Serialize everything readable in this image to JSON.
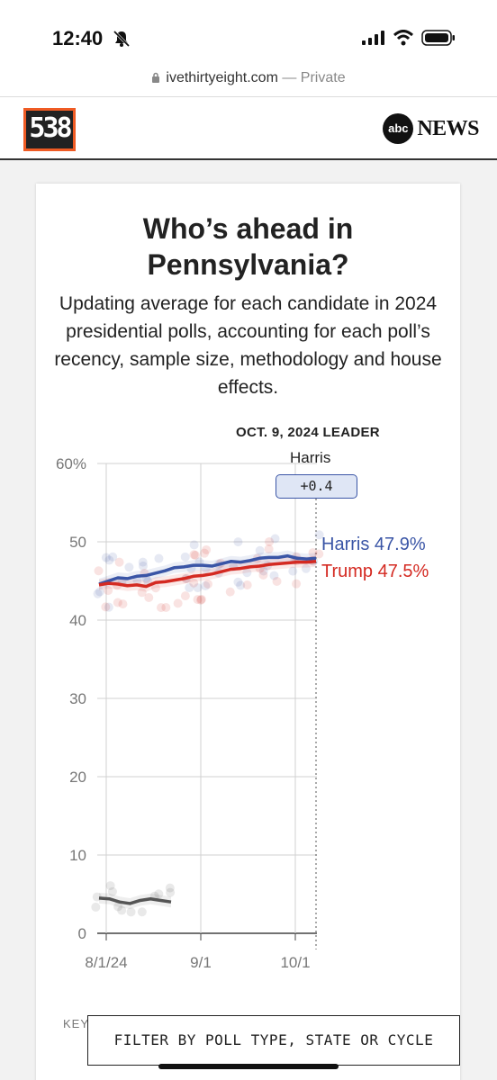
{
  "status_bar": {
    "time": "12:40"
  },
  "browser": {
    "url": "ivethirtyeight.com",
    "separator": " — ",
    "mode": "Private"
  },
  "site": {
    "logo_text": "538",
    "partner_badge": "abc",
    "partner_text": "NEWS"
  },
  "card": {
    "title_line1": "Who’s ahead in",
    "title_line2": "Pennsylvania?",
    "subtitle": "Updating average for each candidate in 2024 presidential polls, accounting for each poll’s recency, sample size, methodology and house effects."
  },
  "leader_panel": {
    "label": "OCT. 9, 2024 LEADER",
    "name": "Harris",
    "margin": "+0.4"
  },
  "end_labels": {
    "harris": "Harris 47.9%",
    "trump": "Trump 47.5%"
  },
  "chart_data": {
    "type": "line",
    "x_ticks": [
      "8/1/24",
      "9/1",
      "10/1"
    ],
    "y_ticks": [
      "0",
      "10",
      "20",
      "30",
      "40",
      "50",
      "60%"
    ],
    "ylim": [
      0,
      60
    ],
    "grid": true,
    "series": [
      {
        "name": "Harris",
        "color": "#3a55a6",
        "values": [
          44.6,
          45.0,
          45.4,
          45.3,
          45.6,
          45.7,
          46.0,
          46.3,
          46.7,
          46.8,
          47.0,
          47.0,
          46.9,
          47.2,
          47.5,
          47.4,
          47.6,
          47.9,
          48.0,
          48.0,
          48.2,
          47.9,
          47.8,
          47.9
        ]
      },
      {
        "name": "Trump",
        "color": "#d42a22",
        "values": [
          44.5,
          44.7,
          44.6,
          44.4,
          44.5,
          44.3,
          44.8,
          44.9,
          45.1,
          45.3,
          45.6,
          45.7,
          45.9,
          46.2,
          46.5,
          46.6,
          46.8,
          46.9,
          47.1,
          47.2,
          47.3,
          47.4,
          47.4,
          47.5
        ]
      },
      {
        "name": "",
        "color": "#555555",
        "values": [
          4.5,
          4.4,
          4.0,
          3.8,
          4.2,
          4.4,
          4.2,
          4.0
        ]
      }
    ]
  },
  "footer": {
    "key_label": "KEY",
    "filter_button": "FILTER BY POLL TYPE, STATE OR CYCLE"
  }
}
